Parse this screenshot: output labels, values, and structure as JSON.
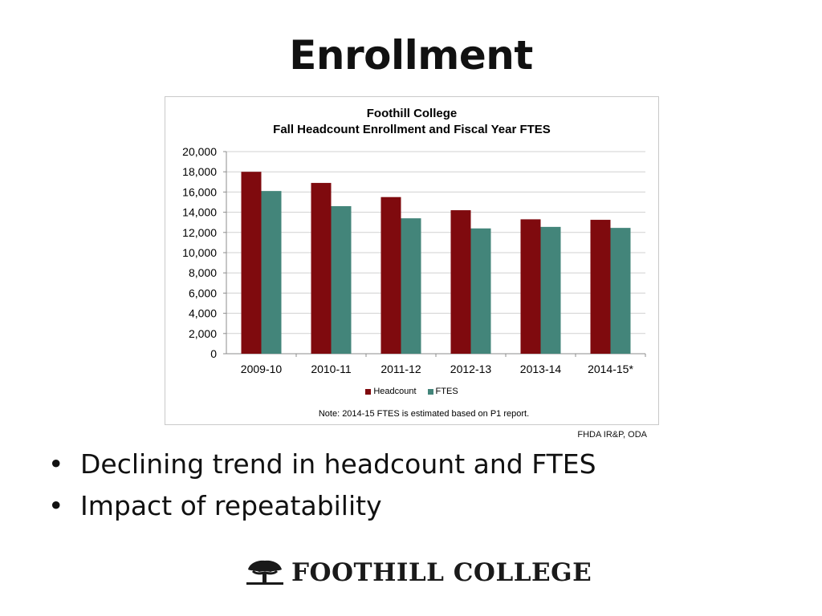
{
  "slide": {
    "title": "Enrollment",
    "source": "FHDA IR&P, ODA",
    "bullets": [
      "Declining trend in headcount and FTES",
      "Impact of repeatability"
    ],
    "logo_text": "FOOTHILL COLLEGE"
  },
  "chart_data": {
    "type": "bar",
    "title": "Foothill College",
    "subtitle": "Fall Headcount Enrollment and Fiscal Year FTES",
    "categories": [
      "2009-10",
      "2010-11",
      "2011-12",
      "2012-13",
      "2013-14",
      "2014-15*"
    ],
    "series": [
      {
        "name": "Headcount",
        "color": "#7f0a0e",
        "values": [
          18000,
          16900,
          15500,
          14200,
          13300,
          13250
        ]
      },
      {
        "name": "FTES",
        "color": "#43857a",
        "values": [
          16100,
          14600,
          13400,
          12400,
          12550,
          12450
        ]
      }
    ],
    "ylim": [
      0,
      20000
    ],
    "yticks": [
      "0",
      "2,000",
      "4,000",
      "6,000",
      "8,000",
      "10,000",
      "12,000",
      "14,000",
      "16,000",
      "18,000",
      "20,000"
    ],
    "grid": true,
    "legend": "bottom",
    "note": "Note: 2014-15 FTES is estimated based on P1 report."
  }
}
